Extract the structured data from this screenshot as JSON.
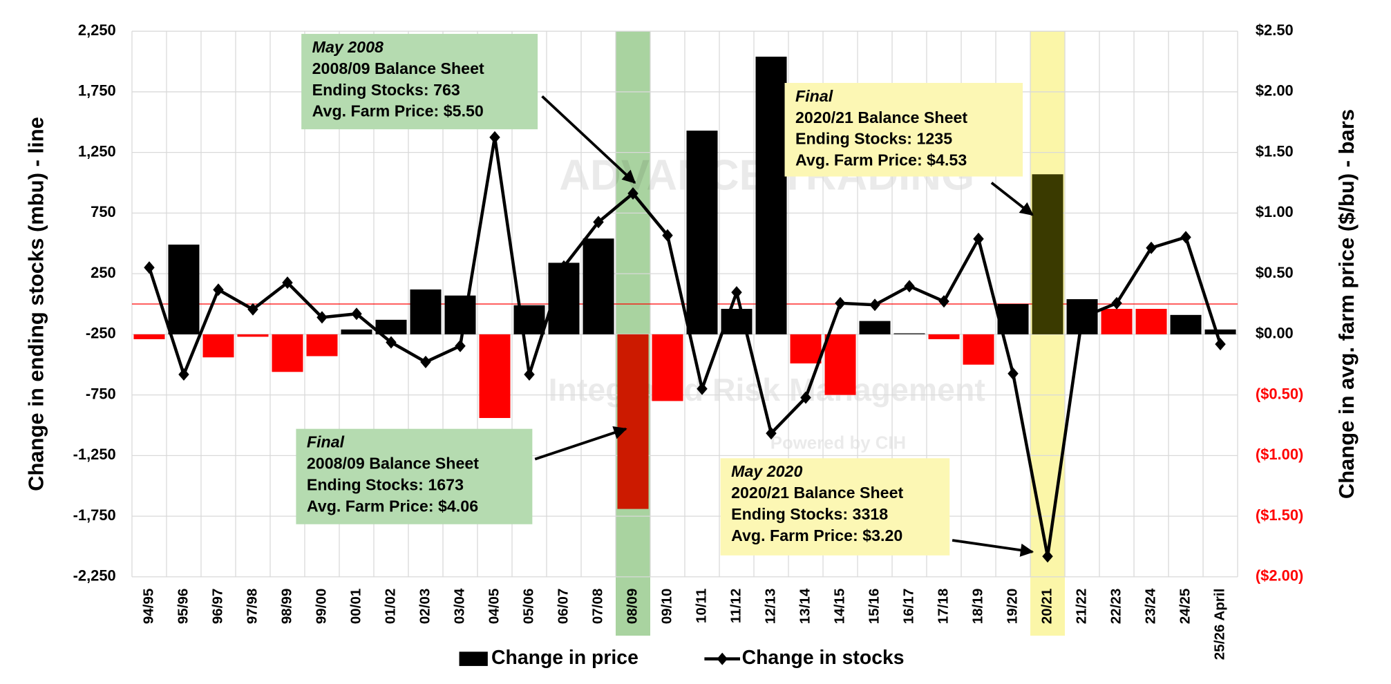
{
  "chart_data": {
    "type": "bar-line",
    "y_label": "Change in ending stocks (mbu) - line",
    "y2_label": "Change in avg. farm price ($/bu) - bars",
    "categories": [
      "94/95",
      "95/96",
      "96/97",
      "97/98",
      "98/99",
      "99/00",
      "00/01",
      "01/02",
      "02/03",
      "03/04",
      "04/05",
      "05/06",
      "06/07",
      "07/08",
      "08/09",
      "09/10",
      "10/11",
      "11/12",
      "12/13",
      "13/14",
      "14/15",
      "15/16",
      "16/17",
      "17/18",
      "18/19",
      "19/20",
      "20/21",
      "21/22",
      "22/23",
      "23/24",
      "24/25",
      "25/26 April"
    ],
    "ylim": [
      -2250,
      2250
    ],
    "yticks": [
      {
        "value": -2250,
        "label": "-2,250"
      },
      {
        "value": -1750,
        "label": "-1,750"
      },
      {
        "value": -1250,
        "label": "-1,250"
      },
      -750,
      -250,
      250,
      750,
      {
        "value": 1250,
        "label": "1,250"
      },
      {
        "value": 1750,
        "label": "1,750"
      },
      {
        "value": 2250,
        "label": "2,250"
      }
    ],
    "y2lim": [
      -2,
      2.5
    ],
    "y2ticks": [
      {
        "value": -2,
        "label": "($2.00)"
      },
      {
        "value": -1.5,
        "label": "($1.50)"
      },
      {
        "value": -1,
        "label": "($1.00)"
      },
      {
        "value": -0.5,
        "label": "($0.50)"
      },
      {
        "value": 0,
        "label": "$0.00"
      },
      {
        "value": 0.5,
        "label": "$0.50"
      },
      {
        "value": 1,
        "label": "$1.00"
      },
      {
        "value": 1.5,
        "label": "$1.50"
      },
      {
        "value": 2,
        "label": "$2.00"
      },
      {
        "value": 2.5,
        "label": "$2.50"
      }
    ],
    "negative_tick_color": "#ff0000",
    "grid": true,
    "reference_line": {
      "value": 0,
      "color": "#ff0000"
    },
    "series": [
      {
        "name": "Change in price",
        "type": "bar",
        "axis": "y2",
        "color": "#000000",
        "values": [
          -0.04,
          0.74,
          -0.19,
          -0.02,
          -0.31,
          -0.18,
          0.04,
          0.12,
          0.37,
          0.32,
          -0.69,
          0.24,
          0.59,
          0.79,
          -1.44,
          -0.55,
          1.68,
          0.21,
          2.29,
          -0.24,
          -0.5,
          0.11,
          0.01,
          -0.04,
          -0.25,
          0.25,
          1.32,
          0.29,
          0.21,
          0.21,
          0.16,
          0.04
        ],
        "colors": [
          "#ff0000",
          "#000000",
          "#ff0000",
          "#ff0000",
          "#ff0000",
          "#ff0000",
          "#000000",
          "#000000",
          "#000000",
          "#000000",
          "#ff0000",
          "#000000",
          "#000000",
          "#000000",
          "#cc1a00",
          "#ff0000",
          "#000000",
          "#000000",
          "#000000",
          "#ff0000",
          "#ff0000",
          "#000000",
          "#555555",
          "#ff0000",
          "#ff0000",
          "#000000",
          "#3a3a00",
          "#000000",
          "#ff0000",
          "#ff0000",
          "#000000",
          "#000000"
        ]
      },
      {
        "name": "Change in stocks",
        "type": "line",
        "color": "#000000",
        "values": [
          301,
          -581,
          118,
          -44,
          176,
          -110,
          -81,
          -316,
          -478,
          -346,
          1375,
          -581,
          309,
          676,
          912,
          566,
          -699,
          96,
          -1066,
          -772,
          7,
          -7,
          147,
          22,
          537,
          -574,
          -2081,
          -110,
          7,
          463,
          551,
          -331
        ]
      }
    ],
    "highlights": [
      {
        "category": "08/09",
        "color": "#a9d3a0"
      },
      {
        "category": "20/21",
        "color": "#fbf6a8"
      }
    ],
    "annotations": [
      {
        "lines": [
          "May 2008",
          "2008/09 Balance Sheet",
          "Ending Stocks: 763",
          "Avg. Farm Price: $5.50"
        ],
        "color": "#b5dbb0"
      },
      {
        "lines": [
          "Final",
          "2020/21 Balance Sheet",
          "Ending Stocks: 1235",
          "Avg. Farm Price: $4.53"
        ],
        "color": "#fcf7b4"
      },
      {
        "lines": [
          "Final",
          "2008/09 Balance Sheet",
          "Ending Stocks: 1673",
          "Avg. Farm Price: $4.06"
        ],
        "color": "#b5dbb0"
      },
      {
        "lines": [
          "May 2020",
          "2020/21 Balance Sheet",
          "Ending Stocks: 3318",
          "Avg. Farm Price: $3.20"
        ],
        "color": "#fcf7b4"
      }
    ],
    "watermark": [
      "ADVANCE TRADING",
      "Integrated Risk Management",
      "Powered by CIH"
    ]
  }
}
